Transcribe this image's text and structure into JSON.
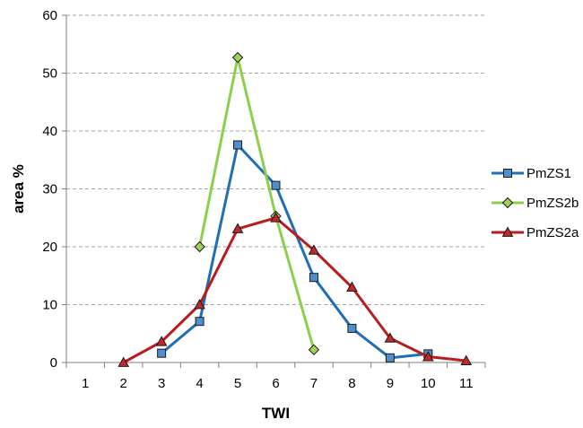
{
  "chart_data": {
    "type": "line",
    "title": "",
    "xlabel": "TWI",
    "ylabel": "area %",
    "xlim": [
      0.5,
      11.5
    ],
    "ylim": [
      0,
      60
    ],
    "x_ticks": [
      1,
      2,
      3,
      4,
      5,
      6,
      7,
      8,
      9,
      10,
      11
    ],
    "y_ticks": [
      0,
      10,
      20,
      30,
      40,
      50,
      60
    ],
    "grid": "horizontal dashed",
    "legend_position": "right",
    "series": [
      {
        "name": "PmZS1",
        "color": "#1f6fb5",
        "marker": "square",
        "marker_fill": "#4f8fd0",
        "x": [
          3,
          4,
          5,
          6,
          7,
          8,
          9,
          10
        ],
        "y": [
          1.6,
          7.1,
          37.6,
          30.6,
          14.7,
          5.9,
          0.8,
          1.5
        ]
      },
      {
        "name": "PmZS2b",
        "color": "#8ccf4d",
        "marker": "diamond",
        "marker_fill": "#9fd05a",
        "x": [
          4,
          5,
          6,
          7
        ],
        "y": [
          20.0,
          52.7,
          25.3,
          2.2
        ]
      },
      {
        "name": "PmZS2a",
        "color": "#b81c1c",
        "marker": "triangle",
        "marker_fill": "#c0282a",
        "x": [
          2,
          3,
          4,
          5,
          6,
          7,
          8,
          9,
          10,
          11
        ],
        "y": [
          0.0,
          3.6,
          10.0,
          23.1,
          25.0,
          19.4,
          13.0,
          4.2,
          1.0,
          0.3
        ]
      }
    ]
  }
}
